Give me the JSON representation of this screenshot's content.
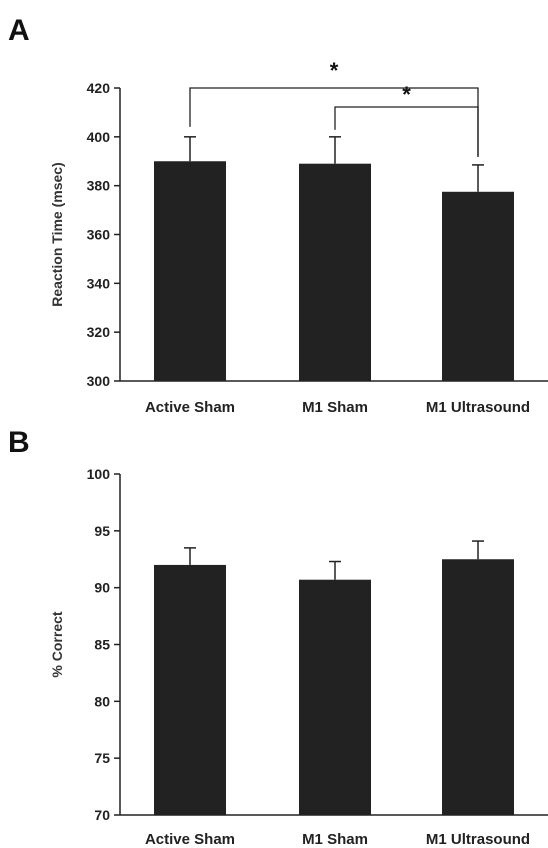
{
  "chart_data": [
    {
      "panel": "A",
      "type": "bar",
      "categories": [
        "Active Sham",
        "M1 Sham",
        "M1 Ultrasound"
      ],
      "values": [
        390,
        389,
        377.5
      ],
      "errors": [
        10,
        11,
        11
      ],
      "ylabel": "Reaction Time (msec)",
      "xlabel": "",
      "ylim": [
        300,
        420
      ],
      "yticks": [
        300,
        320,
        340,
        360,
        380,
        400,
        420
      ],
      "bar_color": "#222222",
      "grid": false,
      "significance": [
        {
          "from": 0,
          "to": 2,
          "label": "*"
        },
        {
          "from": 1,
          "to": 2,
          "label": "*"
        }
      ]
    },
    {
      "panel": "B",
      "type": "bar",
      "categories": [
        "Active Sham",
        "M1 Sham",
        "M1 Ultrasound"
      ],
      "values": [
        92,
        90.7,
        92.5
      ],
      "errors": [
        1.5,
        1.6,
        1.6
      ],
      "ylabel": "% Correct",
      "xlabel": "",
      "ylim": [
        70,
        100
      ],
      "yticks": [
        70,
        75,
        80,
        85,
        90,
        95,
        100
      ],
      "bar_color": "#222222",
      "grid": false,
      "significance": []
    }
  ]
}
